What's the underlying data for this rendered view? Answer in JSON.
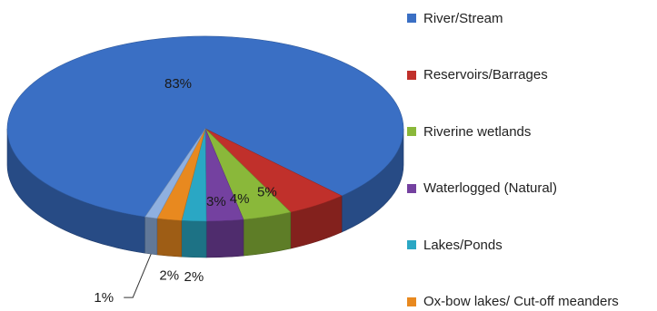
{
  "chart_data": {
    "type": "pie",
    "title": "",
    "series": [
      {
        "name": "River/Stream",
        "value": 83,
        "label": "83%",
        "color": "#3a6fc4"
      },
      {
        "name": "Reservoirs/Barrages",
        "value": 5,
        "label": "5%",
        "color": "#c0302b"
      },
      {
        "name": "Riverine wetlands",
        "value": 4,
        "label": "4%",
        "color": "#8ab83a"
      },
      {
        "name": "Waterlogged (Natural)",
        "value": 3,
        "label": "3%",
        "color": "#7441a0"
      },
      {
        "name": "Lakes/Ponds",
        "value": 2,
        "label": "2%",
        "color": "#2aa7c4"
      },
      {
        "name": "Ox-bow lakes/ Cut-off meanders",
        "value": 2,
        "label": "2%",
        "color": "#e8891f"
      },
      {
        "name": "",
        "value": 1,
        "label": "1%",
        "color": "#8fb0e0"
      }
    ],
    "legend_position": "right",
    "style": "3d-pie"
  }
}
